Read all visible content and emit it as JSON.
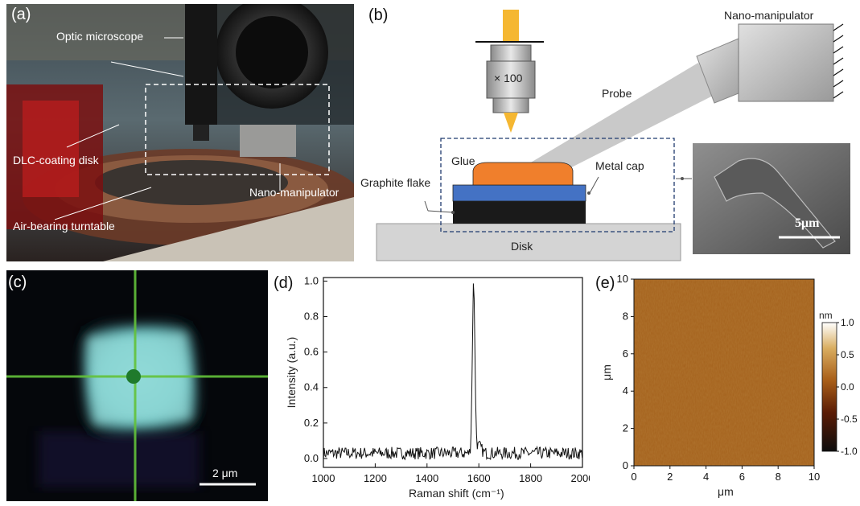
{
  "panel_a": {
    "label": "(a)",
    "callouts": {
      "optic_microscope": "Optic microscope",
      "dlc_disk": "DLC-coating disk",
      "nano_manipulator": "Nano-manipulator",
      "turntable": "Air-bearing turntable"
    }
  },
  "panel_b": {
    "label": "(b)",
    "objective": "× 100",
    "nano_manipulator": "Nano-manipulator",
    "probe": "Probe",
    "glue": "Glue",
    "metal_cap": "Metal cap",
    "graphite_flake": "Graphite flake",
    "disk": "Disk",
    "sem_scale": "5μm",
    "colors": {
      "glue": "#f07f2c",
      "metal_cap": "#4472c4",
      "graphite": "#1a1a1a",
      "disk": "#d4d4d4"
    }
  },
  "panel_c": {
    "label": "(c)",
    "scale": "2 μm"
  },
  "panel_d": {
    "label": "(d)",
    "chart_data": {
      "type": "line",
      "xlabel": "Raman shift (cm⁻¹)",
      "ylabel": "Intensity (a.u.)",
      "xlim": [
        1000,
        2000
      ],
      "ylim": [
        -0.05,
        1.02
      ],
      "xticks": [
        "1000",
        "1200",
        "1400",
        "1600",
        "1800",
        "2000"
      ],
      "yticks": [
        "0.0",
        "0.2",
        "0.4",
        "0.6",
        "0.8",
        "1.0"
      ],
      "peak": {
        "x": 1580,
        "y": 0.96
      }
    }
  },
  "panel_e": {
    "label": "(e)",
    "chart_data": {
      "type": "heatmap",
      "xlabel": "μm",
      "ylabel": "μm",
      "xlim": [
        0,
        10
      ],
      "ylim": [
        0,
        10
      ],
      "xticks": [
        "0",
        "2",
        "4",
        "6",
        "8",
        "10"
      ],
      "yticks": [
        "0",
        "2",
        "4",
        "6",
        "8",
        "10"
      ],
      "colorbar": {
        "unit": "nm",
        "ticks": [
          "1.0",
          "0.5",
          "0.0",
          "-0.5",
          "-1.0"
        ],
        "range": [
          -1.0,
          1.0
        ]
      }
    }
  }
}
